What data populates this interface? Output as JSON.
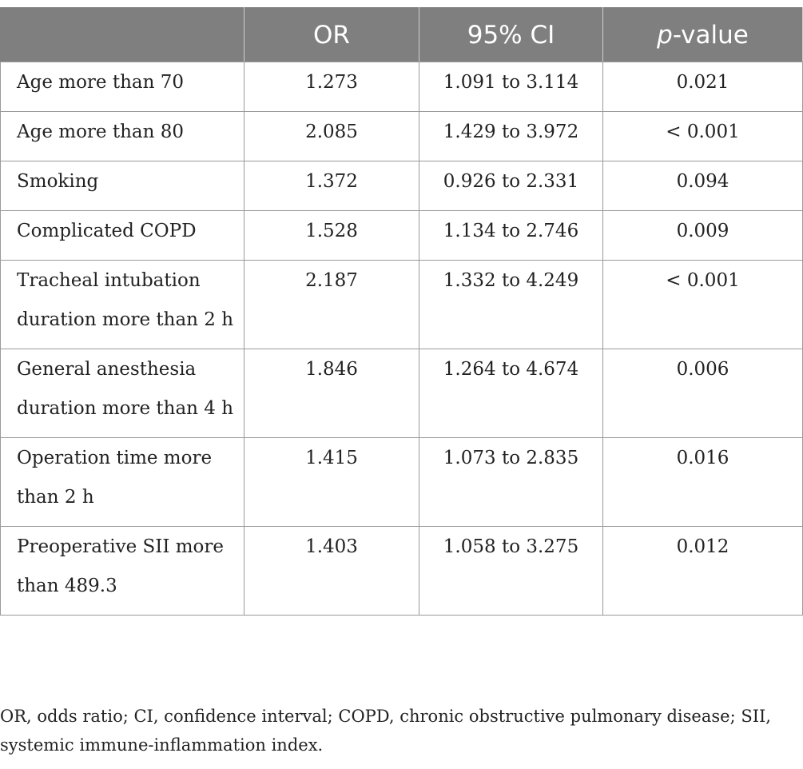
{
  "table": {
    "headers": {
      "variable": "",
      "or": "OR",
      "ci": "95% CI",
      "p_italic": "p",
      "p_rest": "-value"
    },
    "rows": [
      {
        "label": "Age more than 70",
        "or": "1.273",
        "ci": "1.091 to 3.114",
        "p": "0.021"
      },
      {
        "label": "Age more than 80",
        "or": "2.085",
        "ci": "1.429 to 3.972",
        "p": "< 0.001"
      },
      {
        "label": "Smoking",
        "or": "1.372",
        "ci": "0.926 to 2.331",
        "p": "0.094"
      },
      {
        "label": "Complicated COPD",
        "or": "1.528",
        "ci": "1.134 to 2.746",
        "p": "0.009"
      },
      {
        "label": "Tracheal intubation duration more than 2 h",
        "or": "2.187",
        "ci": "1.332 to 4.249",
        "p": "< 0.001"
      },
      {
        "label": "General anesthesia duration more than 4 h",
        "or": "1.846",
        "ci": "1.264 to 4.674",
        "p": "0.006"
      },
      {
        "label": "Operation time more than 2 h",
        "or": "1.415",
        "ci": "1.073 to 2.835",
        "p": "0.016"
      },
      {
        "label": "Preoperative SII more than 489.3",
        "or": "1.403",
        "ci": "1.058 to 3.275",
        "p": "0.012"
      }
    ]
  },
  "footnote": "OR, odds ratio; CI, confidence interval; COPD, chronic obstructive pulmonary disease; SII, systemic immune-inflammation index."
}
